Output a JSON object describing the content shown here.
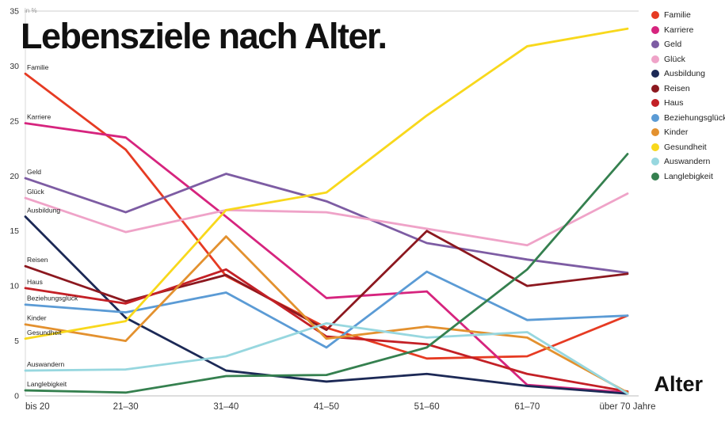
{
  "chart_data": {
    "type": "line",
    "title": "Lebensziele nach Alter.",
    "unit_label": "in %",
    "xlabel": "Alter",
    "ylim": [
      0,
      35
    ],
    "yticks": [
      0,
      5,
      10,
      15,
      20,
      25,
      30,
      35
    ],
    "grid": "top-line-only",
    "legend_position": "top-right",
    "categories": [
      "bis 20",
      "21–30",
      "31–40",
      "41–50",
      "51–60",
      "61–70",
      "über 70 Jahre"
    ],
    "series": [
      {
        "name": "Familie",
        "color": "#e63b23",
        "values": [
          29.3,
          22.4,
          10.9,
          6.2,
          3.4,
          3.6,
          7.3
        ]
      },
      {
        "name": "Karriere",
        "color": "#d6247e",
        "values": [
          24.8,
          23.5,
          16.3,
          8.9,
          9.5,
          1.0,
          0.3
        ]
      },
      {
        "name": "Geld",
        "color": "#7d5ca3",
        "values": [
          19.8,
          16.7,
          20.2,
          17.7,
          13.9,
          12.4,
          11.2
        ]
      },
      {
        "name": "Glück",
        "color": "#efa3c8",
        "values": [
          18.0,
          14.9,
          16.9,
          16.7,
          15.2,
          13.7,
          18.4
        ]
      },
      {
        "name": "Ausbildung",
        "color": "#1c2956",
        "values": [
          16.3,
          7.1,
          2.3,
          1.3,
          2.0,
          0.9,
          0.2
        ]
      },
      {
        "name": "Reisen",
        "color": "#8c181f",
        "values": [
          11.8,
          8.6,
          11.0,
          6.0,
          15.0,
          10.0,
          11.1
        ]
      },
      {
        "name": "Haus",
        "color": "#c32026",
        "values": [
          9.8,
          8.4,
          11.5,
          5.4,
          4.7,
          2.0,
          0.4
        ]
      },
      {
        "name": "Beziehungsglück",
        "color": "#5b9bd5",
        "values": [
          8.3,
          7.6,
          9.4,
          4.4,
          11.3,
          6.9,
          7.3
        ]
      },
      {
        "name": "Kinder",
        "color": "#e3912f",
        "values": [
          6.5,
          5.0,
          14.5,
          5.2,
          6.3,
          5.3,
          0.3
        ]
      },
      {
        "name": "Gesundheit",
        "color": "#f8d81c",
        "values": [
          5.2,
          6.8,
          16.9,
          18.5,
          25.5,
          31.8,
          33.4
        ]
      },
      {
        "name": "Auswandern",
        "color": "#97d7df",
        "values": [
          2.3,
          2.4,
          3.6,
          6.6,
          5.3,
          5.8,
          0.2
        ]
      },
      {
        "name": "Langlebigkeit",
        "color": "#35804f",
        "values": [
          0.5,
          0.3,
          1.8,
          1.9,
          4.4,
          11.5,
          22.0
        ]
      }
    ]
  }
}
